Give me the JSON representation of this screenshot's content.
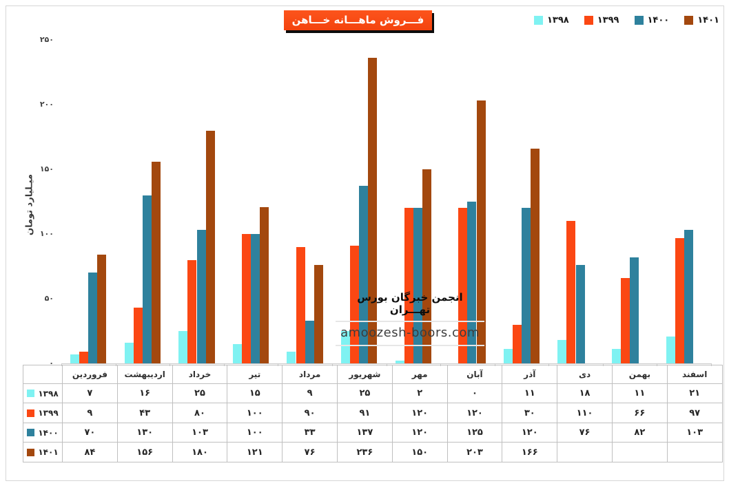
{
  "title": "فـــروش ماهـــانه خـــاهن",
  "colors": {
    "title_bg": "#F4430E",
    "s1398": "#7FF2F2",
    "s1399": "#FB4713",
    "s1400": "#2E819D",
    "s1401": "#A3480E",
    "border": "#BFBFBF",
    "frame": "#D6D6D6"
  },
  "legend": [
    {
      "label": "۱۳۹۸",
      "color": "#7FF2F2"
    },
    {
      "label": "۱۳۹۹",
      "color": "#FB4713"
    },
    {
      "label": "۱۴۰۰",
      "color": "#2E819D"
    },
    {
      "label": "۱۴۰۱",
      "color": "#A3480E"
    }
  ],
  "y_axis": {
    "title": "میـلیارد تومان",
    "ticks": [
      {
        "label": "۰",
        "value": 0
      },
      {
        "label": "۵۰",
        "value": 50
      },
      {
        "label": "۱۰۰",
        "value": 100
      },
      {
        "label": "۱۵۰",
        "value": 150
      },
      {
        "label": "۲۰۰",
        "value": 200
      },
      {
        "label": "۲۵۰",
        "value": 250
      }
    ]
  },
  "watermark": {
    "line1": "انجمن خبرگان بورس تهـــران",
    "line2": "amoozesh-boors.com"
  },
  "chart_data": {
    "type": "bar",
    "title": "فروش ماهانه خاهن",
    "xlabel": "",
    "ylabel": "میلیارد تومان",
    "ylim": [
      0,
      250
    ],
    "grid": false,
    "legend_position": "top-right",
    "categories": [
      "فروردین",
      "اردیبهشت",
      "خرداد",
      "تیر",
      "مرداد",
      "شهریور",
      "مهر",
      "آبان",
      "آذر",
      "دی",
      "بهمن",
      "اسفند"
    ],
    "series": [
      {
        "name": "۱۳۹۸",
        "color": "#7FF2F2",
        "values": [
          7,
          16,
          25,
          15,
          9,
          25,
          2,
          0,
          11,
          18,
          11,
          21
        ]
      },
      {
        "name": "۱۳۹۹",
        "color": "#FB4713",
        "values": [
          9,
          43,
          80,
          100,
          90,
          91,
          120,
          120,
          30,
          110,
          66,
          97
        ]
      },
      {
        "name": "۱۴۰۰",
        "color": "#2E819D",
        "values": [
          70,
          130,
          103,
          100,
          33,
          137,
          120,
          125,
          120,
          76,
          82,
          103
        ]
      },
      {
        "name": "۱۴۰۱",
        "color": "#A3480E",
        "values": [
          84,
          156,
          180,
          121,
          76,
          236,
          150,
          203,
          166,
          null,
          null,
          null
        ]
      }
    ]
  },
  "table": {
    "corner": "",
    "month_headers": [
      "فروردین",
      "اردیبهشت",
      "خرداد",
      "تیر",
      "مرداد",
      "شهریور",
      "مهر",
      "آبان",
      "آذر",
      "دی",
      "بهمن",
      "اسفند"
    ],
    "rows": [
      {
        "label": "۱۳۹۸",
        "color": "#7FF2F2",
        "cells": [
          "۷",
          "۱۶",
          "۲۵",
          "۱۵",
          "۹",
          "۲۵",
          "۲",
          "۰",
          "۱۱",
          "۱۸",
          "۱۱",
          "۲۱"
        ]
      },
      {
        "label": "۱۳۹۹",
        "color": "#FB4713",
        "cells": [
          "۹",
          "۴۳",
          "۸۰",
          "۱۰۰",
          "۹۰",
          "۹۱",
          "۱۲۰",
          "۱۲۰",
          "۳۰",
          "۱۱۰",
          "۶۶",
          "۹۷"
        ]
      },
      {
        "label": "۱۴۰۰",
        "color": "#2E819D",
        "cells": [
          "۷۰",
          "۱۳۰",
          "۱۰۳",
          "۱۰۰",
          "۳۳",
          "۱۳۷",
          "۱۲۰",
          "۱۲۵",
          "۱۲۰",
          "۷۶",
          "۸۲",
          "۱۰۳"
        ]
      },
      {
        "label": "۱۴۰۱",
        "color": "#A3480E",
        "cells": [
          "۸۴",
          "۱۵۶",
          "۱۸۰",
          "۱۲۱",
          "۷۶",
          "۲۳۶",
          "۱۵۰",
          "۲۰۳",
          "۱۶۶",
          "",
          "",
          ""
        ]
      }
    ]
  }
}
